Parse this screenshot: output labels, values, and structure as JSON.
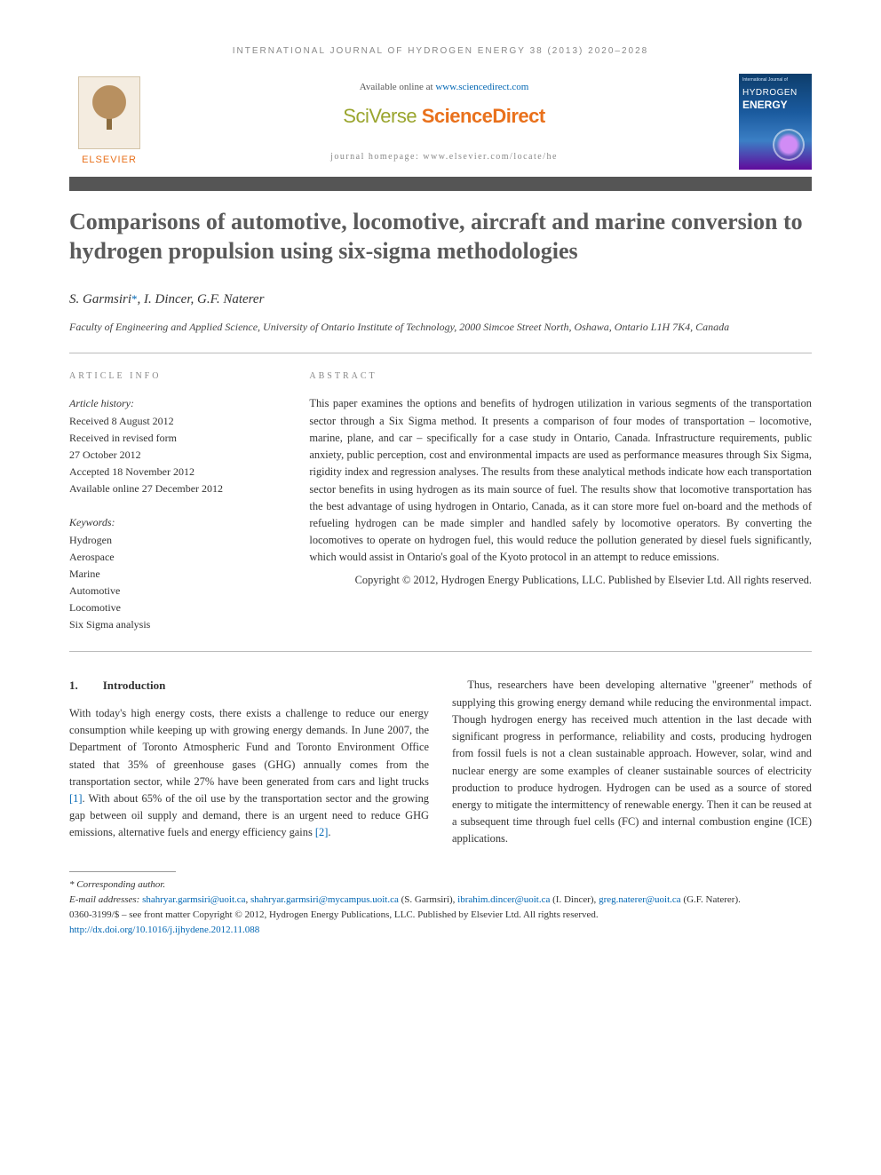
{
  "running_header": "INTERNATIONAL JOURNAL OF HYDROGEN ENERGY 38 (2013) 2020–2028",
  "topband": {
    "available_prefix": "Available online at ",
    "sciencedirect_url": "www.sciencedirect.com",
    "logo_sciverse": "SciVerse",
    "logo_sciencedirect": " ScienceDirect",
    "homepage_prefix": "journal homepage: ",
    "homepage_url": "www.elsevier.com/locate/he",
    "elsevier_word": "ELSEVIER"
  },
  "journal_cover": {
    "small": "International Journal of",
    "hydrogen": "HYDROGEN",
    "energy": "ENERGY"
  },
  "title": "Comparisons of automotive, locomotive, aircraft and marine conversion to hydrogen propulsion using six-sigma methodologies",
  "authors_html": "S. Garmsiri",
  "authors_corr": "*",
  "authors_rest": ", I. Dincer, G.F. Naterer",
  "affiliation": "Faculty of Engineering and Applied Science, University of Ontario Institute of Technology, 2000 Simcoe Street North, Oshawa, Ontario L1H 7K4, Canada",
  "article_info": {
    "heading": "ARTICLE INFO",
    "history_label": "Article history:",
    "lines": [
      "Received 8 August 2012",
      "Received in revised form",
      "27 October 2012",
      "Accepted 18 November 2012",
      "Available online 27 December 2012"
    ],
    "keywords_label": "Keywords:",
    "keywords": [
      "Hydrogen",
      "Aerospace",
      "Marine",
      "Automotive",
      "Locomotive",
      "Six Sigma analysis"
    ]
  },
  "abstract": {
    "heading": "ABSTRACT",
    "body": "This paper examines the options and benefits of hydrogen utilization in various segments of the transportation sector through a Six Sigma method. It presents a comparison of four modes of transportation – locomotive, marine, plane, and car – specifically for a case study in Ontario, Canada. Infrastructure requirements, public anxiety, public perception, cost and environmental impacts are used as performance measures through Six Sigma, rigidity index and regression analyses. The results from these analytical methods indicate how each transportation sector benefits in using hydrogen as its main source of fuel. The results show that locomotive transportation has the best advantage of using hydrogen in Ontario, Canada, as it can store more fuel on-board and the methods of refueling hydrogen can be made simpler and handled safely by locomotive operators. By converting the locomotives to operate on hydrogen fuel, this would reduce the pollution generated by diesel fuels significantly, which would assist in Ontario's goal of the Kyoto protocol in an attempt to reduce emissions.",
    "copyright": "Copyright © 2012, Hydrogen Energy Publications, LLC. Published by Elsevier Ltd. All rights reserved."
  },
  "section1": {
    "num": "1.",
    "title": "Introduction",
    "p1_a": "With today's high energy costs, there exists a challenge to reduce our energy consumption while keeping up with growing energy demands. In June 2007, the Department of Toronto Atmospheric Fund and Toronto Environment Office stated that 35% of greenhouse gases (GHG) annually comes from the transportation sector, while 27% have been generated from cars and light trucks ",
    "ref1": "[1]",
    "p1_b": ". With about 65% of the oil use by the transportation sector and the growing gap between oil supply and demand, there is an urgent need to reduce GHG emissions, alternative fuels and energy efficiency gains ",
    "ref2": "[2]",
    "p1_c": ".",
    "p2": "Thus, researchers have been developing alternative \"greener\" methods of supplying this growing energy demand while reducing the environmental impact. Though hydrogen energy has received much attention in the last decade with significant progress in performance, reliability and costs, producing hydrogen from fossil fuels is not a clean sustainable approach. However, solar, wind and nuclear energy are some examples of cleaner sustainable sources of electricity production to produce hydrogen. Hydrogen can be used as a source of stored energy to mitigate the intermittency of renewable energy. Then it can be reused at a subsequent time through fuel cells (FC) and internal combustion engine (ICE) applications."
  },
  "footnotes": {
    "corr": "* Corresponding author.",
    "email_label": "E-mail addresses: ",
    "emails": [
      {
        "addr": "shahryar.garmsiri@uoit.ca",
        "who": ""
      },
      {
        "addr": "shahryar.garmsiri@mycampus.uoit.ca",
        "who": " (S. Garmsiri), "
      },
      {
        "addr": "ibrahim.dincer@uoit.ca",
        "who": " (I. Dincer), "
      },
      {
        "addr": "greg.naterer@uoit.ca",
        "who": " (G.F. Naterer)."
      }
    ],
    "issn_line": "0360-3199/$ – see front matter Copyright © 2012, Hydrogen Energy Publications, LLC. Published by Elsevier Ltd. All rights reserved.",
    "doi_label": "",
    "doi": "http://dx.doi.org/10.1016/j.ijhydene.2012.11.088"
  },
  "colors": {
    "link": "#0066b3",
    "orange": "#e9711c",
    "olive": "#9aa52e",
    "greytext": "#5a5a5a"
  }
}
